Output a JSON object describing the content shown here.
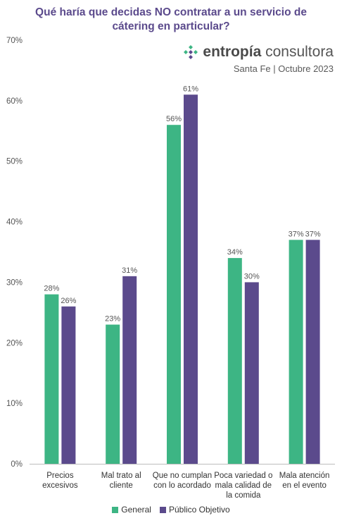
{
  "title": "Qué haría que decidas NO contratar a un servicio de cátering en particular?",
  "brand": {
    "name_bold": "entropía",
    "name_light": " consultora",
    "logo_icon": "entropia-logo-icon"
  },
  "meta": "Santa Fe | Octubre 2023",
  "colors": {
    "general": "#3db584",
    "publico": "#5b4a8c"
  },
  "chart_data": {
    "type": "bar",
    "categories": [
      [
        "Precios",
        "excesivos"
      ],
      [
        "Mal trato al",
        "cliente"
      ],
      [
        "Que no cumplan",
        "con lo acordado"
      ],
      [
        "Poca variedad o",
        "mala calidad de",
        "la comida"
      ],
      [
        "Mala atención",
        "en el evento"
      ]
    ],
    "series": [
      {
        "name": "General",
        "values": [
          28,
          23,
          56,
          34,
          37
        ],
        "labels": [
          "28%",
          "23%",
          "56%",
          "34%",
          "37%"
        ]
      },
      {
        "name": "Público Objetivo",
        "values": [
          26,
          31,
          61,
          30,
          37
        ],
        "labels": [
          "26%",
          "31%",
          "61%",
          "30%",
          "37%"
        ]
      }
    ],
    "ylim": [
      0,
      70
    ],
    "yticks": [
      0,
      10,
      20,
      30,
      40,
      50,
      60,
      70
    ],
    "yticklabels": [
      "0%",
      "10%",
      "20%",
      "30%",
      "40%",
      "50%",
      "60%",
      "70%"
    ],
    "grid": false,
    "legend_position": "bottom"
  }
}
